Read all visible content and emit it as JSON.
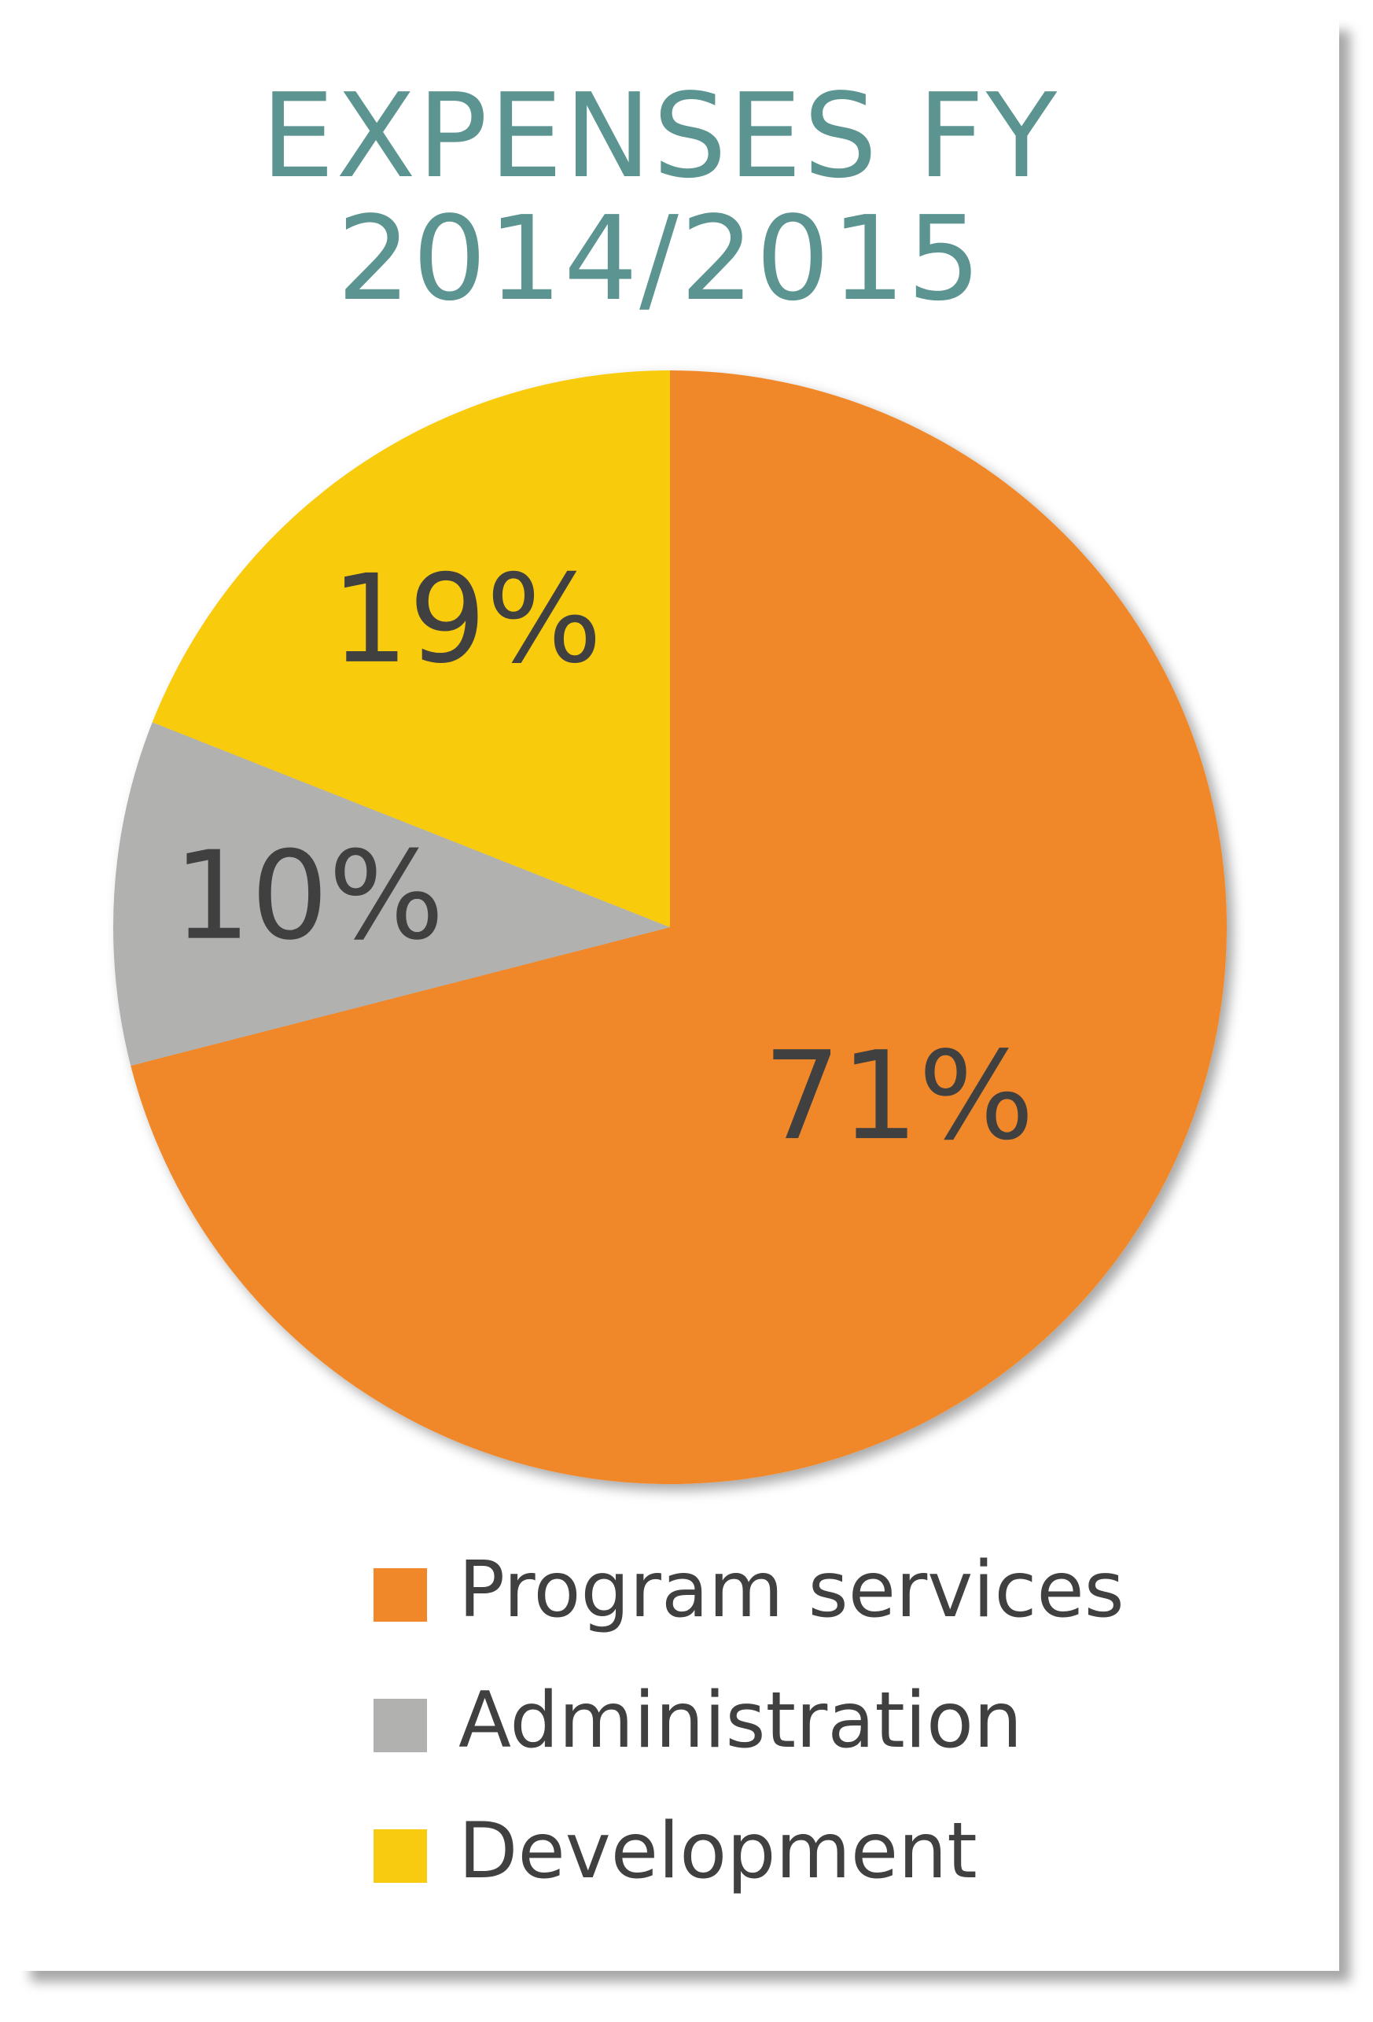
{
  "chart_data": {
    "type": "pie",
    "title": "EXPENSES FY 2014/2015",
    "categories": [
      "Program services",
      "Administration",
      "Development"
    ],
    "values": [
      71,
      10,
      19
    ],
    "value_labels": [
      "71%",
      "10%",
      "19%"
    ],
    "colors": [
      "#f0882a",
      "#b1b1b0",
      "#f8cb10"
    ],
    "legend": "bottom"
  }
}
